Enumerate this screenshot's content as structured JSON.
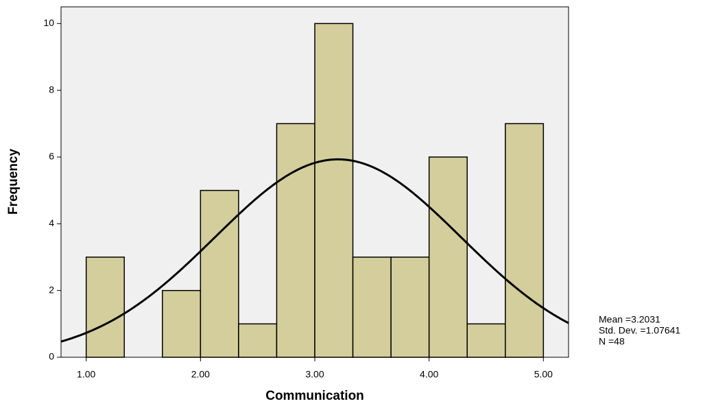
{
  "chart_data": {
    "type": "histogram",
    "x_label": "Communication",
    "y_label": "Frequency",
    "bins": [
      1.0,
      1.3333,
      1.6667,
      2.0,
      2.3333,
      2.6667,
      3.0,
      3.3333,
      3.6667,
      4.0,
      4.3333,
      4.6667,
      5.0
    ],
    "values": [
      3,
      0,
      2,
      5,
      1,
      7,
      10,
      3,
      3,
      6,
      1,
      7
    ],
    "color": "#d3ce9b",
    "background": "#f0f0f0",
    "normal_curve": true,
    "xlim": [
      0.78,
      5.22
    ],
    "ylim": [
      0,
      10.5
    ],
    "xticks": [
      {
        "value": 1,
        "label": "1.00"
      },
      {
        "value": 2,
        "label": "2.00"
      },
      {
        "value": 3,
        "label": "3.00"
      },
      {
        "value": 4,
        "label": "4.00"
      },
      {
        "value": 5,
        "label": "5.00"
      }
    ],
    "yticks": [
      0,
      2,
      4,
      6,
      8,
      10
    ],
    "stats": [
      {
        "value": 3.2031,
        "label": "Mean =3.2031"
      },
      {
        "value": 1.07641,
        "label": "Std. Dev. =1.07641"
      },
      {
        "value": 48,
        "label": "N =48"
      }
    ]
  }
}
